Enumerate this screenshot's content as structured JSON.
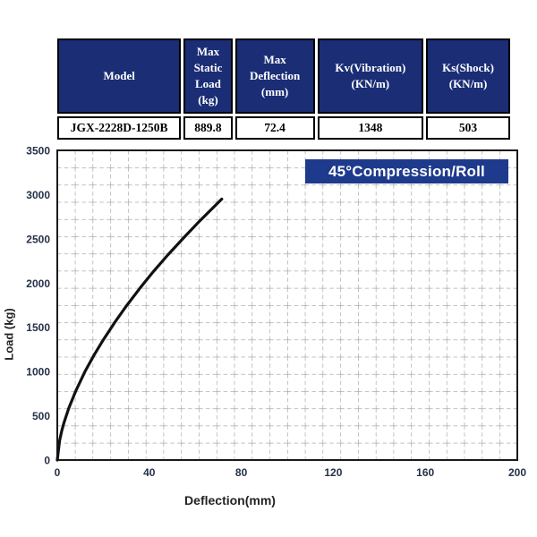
{
  "table": {
    "headers": [
      "Model",
      "Max\nStatic\nLoad\n(kg)",
      "Max\nDeflection\n(mm)",
      "Kv(Vibration)\n(KN/m)",
      "Ks(Shock)\n(KN/m)"
    ],
    "row": [
      "JGX-2228D-1250B",
      "889.8",
      "72.4",
      "1348",
      "503"
    ]
  },
  "colors": {
    "header_bg": "#1a2d75",
    "annotation_bg": "#1e3a8c",
    "curve": "#111111",
    "grid": "#9b9b9b"
  },
  "chart_data": {
    "type": "line",
    "title": "",
    "annotation": "45°Compression/Roll",
    "xlabel": "Deflection(mm)",
    "ylabel": "Load (kg)",
    "xlim": [
      0,
      200
    ],
    "ylim": [
      0,
      3500
    ],
    "xticks": [
      0,
      40,
      80,
      120,
      160,
      200
    ],
    "yticks": [
      0,
      500,
      1000,
      1500,
      2000,
      2500,
      3000,
      3500
    ],
    "grid": "dashed",
    "legend_position": "none",
    "series": [
      {
        "name": "load-deflection-curve",
        "points": [
          [
            0,
            0
          ],
          [
            1,
            220
          ],
          [
            2,
            335
          ],
          [
            3,
            429
          ],
          [
            5,
            585
          ],
          [
            8,
            779
          ],
          [
            12,
            997
          ],
          [
            16,
            1187
          ],
          [
            20,
            1359
          ],
          [
            25,
            1557
          ],
          [
            30,
            1740
          ],
          [
            36,
            1944
          ],
          [
            42,
            2136
          ],
          [
            48,
            2316
          ],
          [
            55,
            2514
          ],
          [
            62,
            2704
          ],
          [
            71.5,
            2950
          ]
        ]
      }
    ]
  }
}
